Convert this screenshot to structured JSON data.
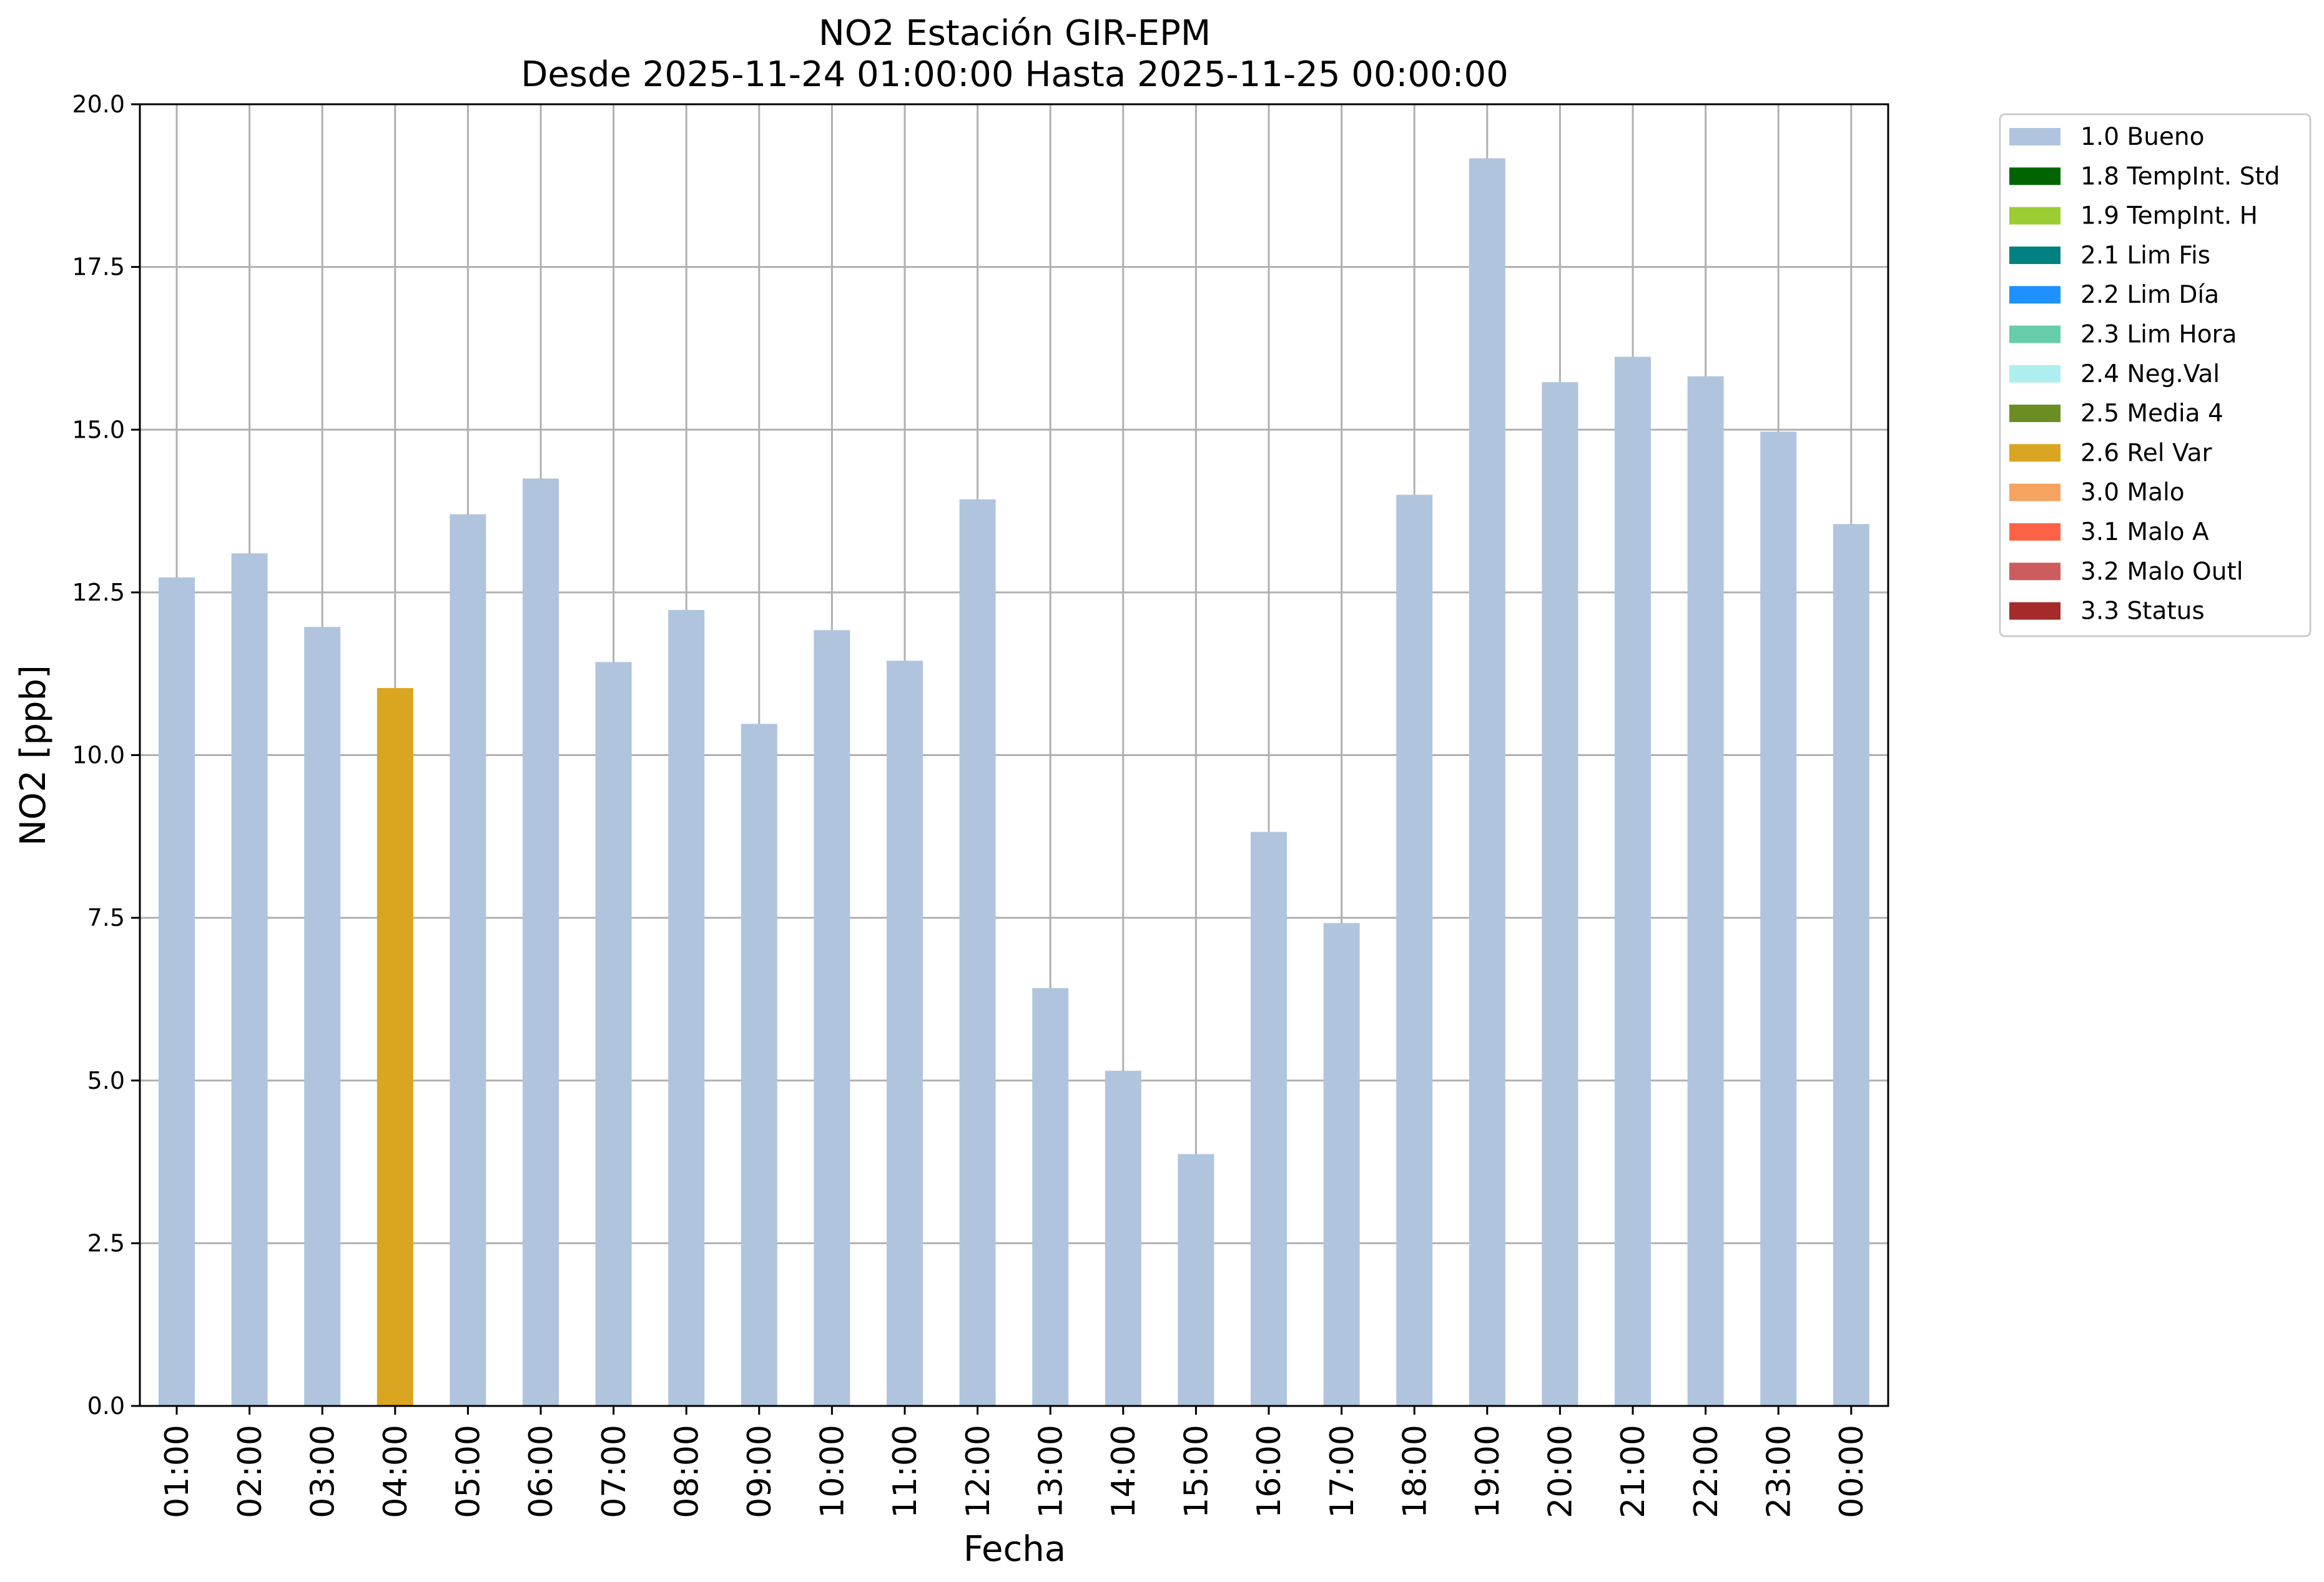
{
  "chart_data": {
    "type": "bar",
    "title": "NO2 Estación GIR-EPM",
    "subtitle": "Desde 2025-11-24 01:00:00 Hasta 2025-11-25 00:00:00",
    "xlabel": "Fecha",
    "ylabel": "NO2 [ppb]",
    "ylim": [
      0,
      20
    ],
    "yticks": [
      "0.0",
      "2.5",
      "5.0",
      "7.5",
      "10.0",
      "12.5",
      "15.0",
      "17.5",
      "20.0"
    ],
    "ytick_values": [
      0,
      2.5,
      5,
      7.5,
      10,
      12.5,
      15,
      17.5,
      20
    ],
    "grid": true,
    "legend_position": "outside-right-top",
    "categories": [
      "01:00",
      "02:00",
      "03:00",
      "04:00",
      "05:00",
      "06:00",
      "07:00",
      "08:00",
      "09:00",
      "10:00",
      "11:00",
      "12:00",
      "13:00",
      "14:00",
      "15:00",
      "16:00",
      "17:00",
      "18:00",
      "19:00",
      "20:00",
      "21:00",
      "22:00",
      "23:00",
      "00:00"
    ],
    "values": [
      12.73,
      13.1,
      11.97,
      11.03,
      13.7,
      14.25,
      11.43,
      12.23,
      10.48,
      11.92,
      11.45,
      13.93,
      6.42,
      5.15,
      3.87,
      8.82,
      7.42,
      14.0,
      19.17,
      15.73,
      16.12,
      15.82,
      14.97,
      13.55
    ],
    "flags": [
      "1.0 Bueno",
      "1.0 Bueno",
      "1.0 Bueno",
      "2.6 Rel Var",
      "1.0 Bueno",
      "1.0 Bueno",
      "1.0 Bueno",
      "1.0 Bueno",
      "1.0 Bueno",
      "1.0 Bueno",
      "1.0 Bueno",
      "1.0 Bueno",
      "1.0 Bueno",
      "1.0 Bueno",
      "1.0 Bueno",
      "1.0 Bueno",
      "1.0 Bueno",
      "1.0 Bueno",
      "1.0 Bueno",
      "1.0 Bueno",
      "1.0 Bueno",
      "1.0 Bueno",
      "1.0 Bueno",
      "1.0 Bueno"
    ],
    "legend": [
      {
        "label": "1.0 Bueno",
        "color": "#b0c4de"
      },
      {
        "label": "1.8 TempInt. Std",
        "color": "#006400"
      },
      {
        "label": "1.9 TempInt. H",
        "color": "#9acd32"
      },
      {
        "label": "2.1 Lim Fis",
        "color": "#008080"
      },
      {
        "label": "2.2 Lim Día",
        "color": "#1e90ff"
      },
      {
        "label": "2.3 Lim Hora",
        "color": "#66cdaa"
      },
      {
        "label": "2.4 Neg.Val",
        "color": "#afeeee"
      },
      {
        "label": "2.5 Media 4",
        "color": "#6b8e23"
      },
      {
        "label": "2.6 Rel Var",
        "color": "#daa520"
      },
      {
        "label": "3.0 Malo",
        "color": "#f4a460"
      },
      {
        "label": "3.1 Malo A",
        "color": "#ff6347"
      },
      {
        "label": "3.2 Malo Outl",
        "color": "#cd5c5c"
      },
      {
        "label": "3.3 Status",
        "color": "#a52a2a"
      }
    ]
  }
}
